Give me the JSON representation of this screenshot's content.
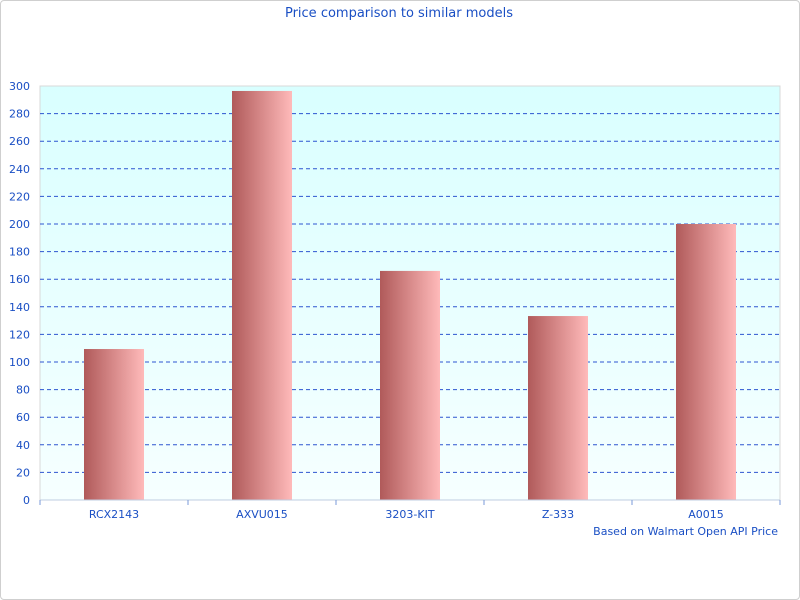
{
  "chart_data": {
    "type": "bar",
    "title": "Price comparison to similar models",
    "categories": [
      "RCX2143",
      "AXVU015",
      "3203-KIT",
      "Z-333",
      "A0015"
    ],
    "values": [
      109.4,
      296.4,
      166,
      133.3,
      200
    ],
    "xlabel": "Based on Walmart Open API Price",
    "ylabel": "",
    "ylim": [
      0,
      300
    ],
    "yticks": [
      0,
      20,
      40,
      60,
      80,
      100,
      120,
      140,
      160,
      180,
      200,
      220,
      240,
      260,
      280,
      300
    ],
    "grid": true,
    "colors": {
      "bar_dark": "#b05a5a",
      "bar_light": "#ffbaba",
      "grid": "#2d55d0",
      "text": "#1a4fc4",
      "plot_bg_top": "#d9ffff",
      "plot_bg_bottom": "#f6ffff"
    }
  }
}
